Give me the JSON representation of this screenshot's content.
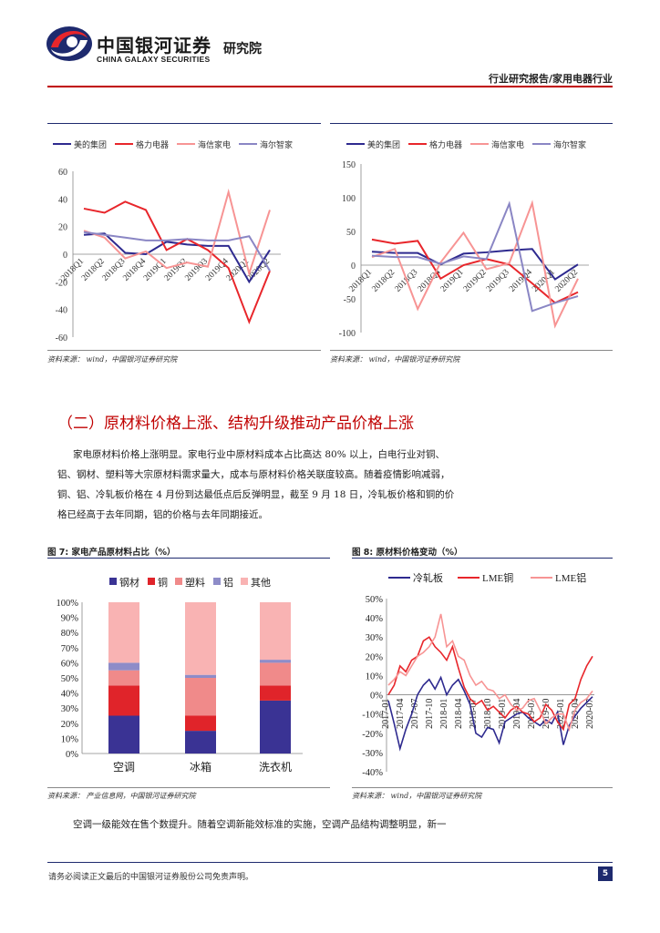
{
  "header": {
    "logo_cn": "中国银河证券",
    "logo_en": "CHINA GALAXY SECURITIES",
    "institute": "研究院",
    "category": "行业研究报告/家用电器行业"
  },
  "colors": {
    "midea": "#2e2a8f",
    "gree": "#e8262b",
    "hisense": "#f79494",
    "haier": "#8a86c4",
    "steel": "#3a3394",
    "copper": "#e0242a",
    "plastic": "#f08a8a",
    "aluminum": "#8e8cc8",
    "other": "#f9b3b3",
    "cold_rolled": "#2e2a8f",
    "lme_copper": "#e8262b",
    "lme_aluminum": "#f79494"
  },
  "chart_data": [
    {
      "type": "line",
      "title": "",
      "categories": [
        "2018Q1",
        "2018Q2",
        "2018Q3",
        "2018Q4",
        "2019Q1",
        "2019Q2",
        "2019Q3",
        "2019Q4",
        "2020Q1",
        "2020Q2"
      ],
      "ylim": [
        -60,
        60
      ],
      "yticks": [
        -60,
        -40,
        -20,
        0,
        20,
        40,
        60
      ],
      "series": [
        {
          "name": "美的集团",
          "values": [
            14,
            15,
            1,
            0,
            9,
            7,
            6,
            6,
            -20,
            3
          ]
        },
        {
          "name": "格力电器",
          "values": [
            33,
            30,
            38,
            32,
            3,
            11,
            3,
            -10,
            -49,
            -12
          ]
        },
        {
          "name": "海信家电",
          "values": [
            17,
            12,
            -3,
            2,
            -10,
            -6,
            -9,
            45,
            -14,
            32
          ]
        },
        {
          "name": "海尔智家",
          "values": [
            16,
            14,
            12,
            10,
            10,
            11,
            10,
            10,
            13,
            -12
          ]
        }
      ]
    },
    {
      "type": "line",
      "title": "",
      "categories": [
        "2018Q1",
        "2018Q2",
        "2018Q3",
        "2018Q4",
        "2019Q1",
        "2019Q2",
        "2019Q3",
        "2019Q4",
        "2020Q1",
        "2020Q2"
      ],
      "ylim": [
        -100,
        150
      ],
      "yticks": [
        -100,
        -50,
        0,
        50,
        100,
        150
      ],
      "series": [
        {
          "name": "美的集团",
          "values": [
            20,
            18,
            18,
            1,
            17,
            19,
            22,
            24,
            -21,
            1
          ]
        },
        {
          "name": "格力电器",
          "values": [
            38,
            32,
            36,
            -20,
            0,
            9,
            1,
            -27,
            -56,
            -40
          ]
        },
        {
          "name": "海信家电",
          "values": [
            12,
            24,
            -65,
            4,
            48,
            -6,
            3,
            92,
            -90,
            -20
          ]
        },
        {
          "name": "海尔智家",
          "values": [
            14,
            12,
            12,
            2,
            13,
            9,
            91,
            -68,
            -56,
            -46
          ]
        }
      ]
    },
    {
      "type": "bar",
      "stacked": true,
      "title": "图 7: 家电产品原材料占比（%）",
      "categories": [
        "空调",
        "冰箱",
        "洗衣机"
      ],
      "ylim": [
        0,
        100
      ],
      "yticks": [
        "0%",
        "10%",
        "20%",
        "30%",
        "40%",
        "50%",
        "60%",
        "70%",
        "80%",
        "90%",
        "100%"
      ],
      "series": [
        {
          "name": "钢材",
          "values": [
            25,
            15,
            35
          ]
        },
        {
          "name": "铜",
          "values": [
            20,
            10,
            10
          ]
        },
        {
          "name": "塑料",
          "values": [
            10,
            25,
            15
          ]
        },
        {
          "name": "铝",
          "values": [
            5,
            2,
            2
          ]
        },
        {
          "name": "其他",
          "values": [
            40,
            48,
            38
          ]
        }
      ]
    },
    {
      "type": "line",
      "title": "图 8: 原材料价格变动（%）",
      "x_start": "2017-01",
      "x_end": "2020-07",
      "xtick_labels": [
        "2017-01",
        "2017-04",
        "2017-07",
        "2017-10",
        "2018-01",
        "2018-04",
        "2018-07",
        "2018-10",
        "2019-01",
        "2019-04",
        "2019-07",
        "2019-10",
        "2020-01",
        "2020-04",
        "2020-07"
      ],
      "ylim": [
        -40,
        50
      ],
      "yticks": [
        "-40%",
        "-30%",
        "-20%",
        "-10%",
        "0%",
        "10%",
        "20%",
        "30%",
        "40%",
        "50%"
      ],
      "series": [
        {
          "name": "冷轧板",
          "values": [
            -3,
            -15,
            -28,
            -18,
            -10,
            0,
            5,
            8,
            3,
            9,
            0,
            5,
            8,
            2,
            -5,
            -20,
            -22,
            -17,
            -18,
            -25,
            -14,
            -12,
            -10,
            -9,
            -12,
            -14,
            -16,
            -13,
            -15,
            -9,
            -26,
            -16,
            -11,
            -7,
            -4,
            -1
          ]
        },
        {
          "name": "LME铜",
          "values": [
            0,
            5,
            15,
            12,
            18,
            20,
            28,
            30,
            25,
            22,
            18,
            25,
            14,
            4,
            -2,
            -5,
            -3,
            -8,
            -6,
            -9,
            -12,
            -8,
            -6,
            -9,
            -10,
            -14,
            -12,
            -5,
            -8,
            -14,
            -18,
            -5,
            -2,
            8,
            15,
            20
          ]
        },
        {
          "name": "LME铝",
          "values": [
            5,
            8,
            12,
            10,
            15,
            20,
            22,
            25,
            30,
            42,
            25,
            28,
            20,
            18,
            10,
            5,
            7,
            3,
            2,
            -2,
            0,
            -5,
            -8,
            -7,
            -3,
            -2,
            -8,
            -15,
            -12,
            -10,
            -10,
            -18,
            -8,
            -4,
            -2,
            2
          ]
        }
      ]
    }
  ],
  "sources": {
    "s1": "资料来源：  wind，中国银河证券研究院",
    "s2": "资料来源：  wind，中国银河证券研究院",
    "s3": "资料来源：  产业信息网，中国银河证券研究院",
    "s4": "资料来源：  wind，中国银河证券研究院"
  },
  "section": {
    "title": "（二）原材料价格上涨、结构升级推动产品价格上涨",
    "para_lines": [
      "家电原材料价格上涨明显。家电行业中原材料成本占比高达 80% 以上，白电行业对铜、",
      "铝、钢材、塑料等大宗原材料需求量大，成本与原材料价格关联度较高。随着疫情影响减弱，",
      "铜、铝、冷轧板价格在 4 月份到达最低点后反弹明显，截至 9 月 18 日，冷轧板价格和铜的价",
      "格已经高于去年同期，铝的价格与去年同期接近。"
    ],
    "para2": "空调一级能效在售个数提升。随着空调新能效标准的实施，空调产品结构调整明显，新一"
  },
  "footer": {
    "disclaimer": "请务必阅读正文最后的中国银河证券股份公司免责声明。",
    "page": "5"
  }
}
